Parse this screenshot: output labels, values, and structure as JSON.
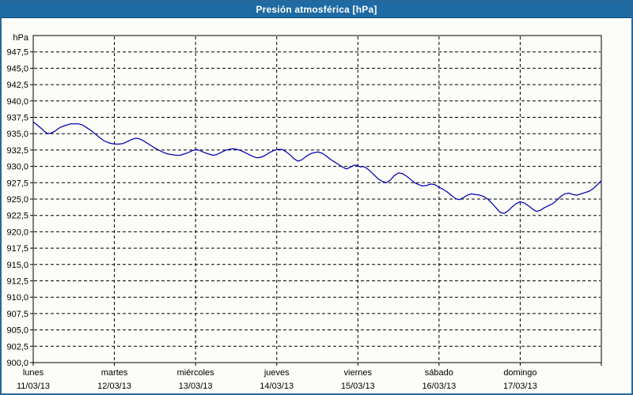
{
  "window": {
    "title": "Presión atmosférica [hPa]",
    "title_bg": "#1e6ba4",
    "border_color": "#26689a",
    "background": "#fcfdf8"
  },
  "chart_data": {
    "type": "line",
    "title": "Presión atmosférica [hPa]",
    "grid": "dashed",
    "legend": "none",
    "line_color": "#0000b4",
    "grid_color": "#000000",
    "y_axis": {
      "unit": "hPa",
      "min": 900,
      "max": 950,
      "tick_step": 2.5,
      "tick_values": [
        947.5,
        945.0,
        942.5,
        940.0,
        937.5,
        935.0,
        932.5,
        930.0,
        927.5,
        925.0,
        922.5,
        920.0,
        917.5,
        915.0,
        912.5,
        910.0,
        907.5,
        905.0,
        902.5,
        900.0
      ],
      "tick_labels": [
        "947,5",
        "945,0",
        "942,5",
        "940,0",
        "937,5",
        "935,0",
        "932,5",
        "930,0",
        "927,5",
        "925,0",
        "922,5",
        "920,0",
        "917,5",
        "915,0",
        "912,5",
        "910,0",
        "907,5",
        "905,0",
        "902,5",
        "900,0"
      ]
    },
    "x_axis": {
      "days": [
        {
          "name": "lunes",
          "date": "11/03/13"
        },
        {
          "name": "martes",
          "date": "12/03/13"
        },
        {
          "name": "miércoles",
          "date": "13/03/13"
        },
        {
          "name": "jueves",
          "date": "14/03/13"
        },
        {
          "name": "viernes",
          "date": "15/03/13"
        },
        {
          "name": "sábado",
          "date": "16/03/13"
        },
        {
          "name": "domingo",
          "date": "17/03/13"
        }
      ]
    },
    "series_name": "Presión atmosférica",
    "points": [
      [
        0.0,
        936.8
      ],
      [
        0.05,
        936.3
      ],
      [
        0.1,
        935.8
      ],
      [
        0.14,
        935.3
      ],
      [
        0.18,
        935.0
      ],
      [
        0.22,
        935.1
      ],
      [
        0.27,
        935.4
      ],
      [
        0.31,
        935.8
      ],
      [
        0.36,
        936.1
      ],
      [
        0.41,
        936.3
      ],
      [
        0.46,
        936.5
      ],
      [
        0.51,
        936.5
      ],
      [
        0.56,
        936.5
      ],
      [
        0.61,
        936.3
      ],
      [
        0.66,
        935.9
      ],
      [
        0.71,
        935.5
      ],
      [
        0.76,
        935.0
      ],
      [
        0.81,
        934.5
      ],
      [
        0.86,
        934.0
      ],
      [
        0.91,
        933.7
      ],
      [
        0.96,
        933.5
      ],
      [
        1.01,
        933.4
      ],
      [
        1.06,
        933.4
      ],
      [
        1.11,
        933.5
      ],
      [
        1.16,
        933.8
      ],
      [
        1.21,
        934.1
      ],
      [
        1.26,
        934.3
      ],
      [
        1.31,
        934.2
      ],
      [
        1.36,
        933.9
      ],
      [
        1.41,
        933.5
      ],
      [
        1.46,
        933.1
      ],
      [
        1.51,
        932.7
      ],
      [
        1.56,
        932.4
      ],
      [
        1.61,
        932.1
      ],
      [
        1.66,
        931.9
      ],
      [
        1.71,
        931.8
      ],
      [
        1.76,
        931.7
      ],
      [
        1.81,
        931.7
      ],
      [
        1.86,
        931.9
      ],
      [
        1.91,
        932.1
      ],
      [
        1.96,
        932.4
      ],
      [
        2.01,
        932.6
      ],
      [
        2.06,
        932.4
      ],
      [
        2.11,
        932.1
      ],
      [
        2.16,
        931.9
      ],
      [
        2.21,
        931.7
      ],
      [
        2.26,
        931.8
      ],
      [
        2.31,
        932.1
      ],
      [
        2.36,
        932.4
      ],
      [
        2.41,
        932.6
      ],
      [
        2.46,
        932.7
      ],
      [
        2.51,
        932.6
      ],
      [
        2.56,
        932.4
      ],
      [
        2.61,
        932.1
      ],
      [
        2.66,
        931.8
      ],
      [
        2.71,
        931.5
      ],
      [
        2.76,
        931.3
      ],
      [
        2.81,
        931.4
      ],
      [
        2.86,
        931.7
      ],
      [
        2.91,
        932.1
      ],
      [
        2.96,
        932.4
      ],
      [
        3.01,
        932.6
      ],
      [
        3.06,
        932.6
      ],
      [
        3.11,
        932.3
      ],
      [
        3.16,
        931.8
      ],
      [
        3.21,
        931.2
      ],
      [
        3.26,
        930.8
      ],
      [
        3.31,
        931.0
      ],
      [
        3.36,
        931.5
      ],
      [
        3.41,
        931.9
      ],
      [
        3.46,
        932.1
      ],
      [
        3.51,
        932.2
      ],
      [
        3.56,
        932.0
      ],
      [
        3.61,
        931.6
      ],
      [
        3.66,
        931.1
      ],
      [
        3.71,
        930.7
      ],
      [
        3.76,
        930.3
      ],
      [
        3.81,
        929.9
      ],
      [
        3.86,
        929.6
      ],
      [
        3.91,
        929.9
      ],
      [
        3.96,
        930.2
      ],
      [
        4.0,
        930.1
      ],
      [
        4.03,
        929.9
      ],
      [
        4.06,
        930.0
      ],
      [
        4.1,
        929.8
      ],
      [
        4.15,
        929.3
      ],
      [
        4.2,
        928.7
      ],
      [
        4.25,
        928.1
      ],
      [
        4.3,
        927.7
      ],
      [
        4.35,
        927.5
      ],
      [
        4.4,
        927.9
      ],
      [
        4.45,
        928.6
      ],
      [
        4.5,
        929.0
      ],
      [
        4.55,
        928.9
      ],
      [
        4.6,
        928.5
      ],
      [
        4.65,
        928.0
      ],
      [
        4.7,
        927.5
      ],
      [
        4.75,
        927.2
      ],
      [
        4.8,
        927.0
      ],
      [
        4.85,
        927.1
      ],
      [
        4.9,
        927.3
      ],
      [
        4.95,
        927.2
      ],
      [
        5.0,
        926.8
      ],
      [
        5.05,
        926.5
      ],
      [
        5.1,
        926.1
      ],
      [
        5.15,
        925.6
      ],
      [
        5.2,
        925.1
      ],
      [
        5.25,
        924.9
      ],
      [
        5.3,
        925.2
      ],
      [
        5.35,
        925.6
      ],
      [
        5.4,
        925.8
      ],
      [
        5.45,
        925.7
      ],
      [
        5.5,
        925.6
      ],
      [
        5.55,
        925.4
      ],
      [
        5.6,
        925.0
      ],
      [
        5.65,
        924.4
      ],
      [
        5.7,
        923.7
      ],
      [
        5.75,
        923.0
      ],
      [
        5.8,
        922.8
      ],
      [
        5.85,
        923.2
      ],
      [
        5.9,
        923.8
      ],
      [
        5.95,
        924.3
      ],
      [
        6.0,
        924.6
      ],
      [
        6.05,
        924.4
      ],
      [
        6.1,
        924.0
      ],
      [
        6.15,
        923.5
      ],
      [
        6.2,
        923.1
      ],
      [
        6.25,
        923.3
      ],
      [
        6.3,
        923.7
      ],
      [
        6.35,
        924.0
      ],
      [
        6.4,
        924.3
      ],
      [
        6.45,
        924.8
      ],
      [
        6.5,
        925.4
      ],
      [
        6.55,
        925.8
      ],
      [
        6.6,
        925.9
      ],
      [
        6.65,
        925.7
      ],
      [
        6.7,
        925.6
      ],
      [
        6.75,
        925.8
      ],
      [
        6.8,
        926.0
      ],
      [
        6.85,
        926.2
      ],
      [
        6.9,
        926.6
      ],
      [
        6.95,
        927.2
      ],
      [
        7.0,
        927.8
      ]
    ]
  }
}
